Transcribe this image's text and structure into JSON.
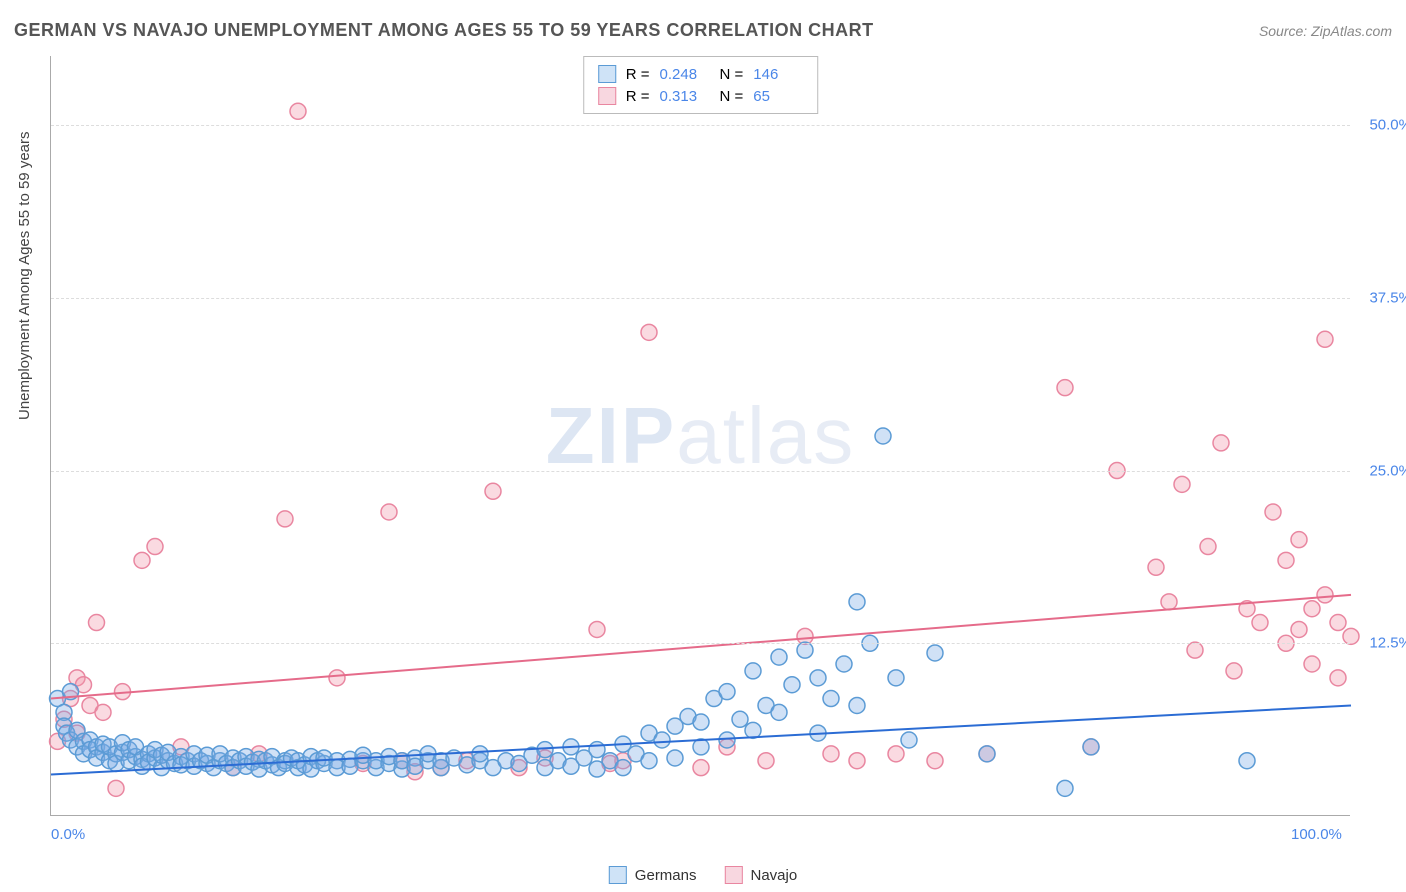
{
  "header": {
    "title": "GERMAN VS NAVAJO UNEMPLOYMENT AMONG AGES 55 TO 59 YEARS CORRELATION CHART",
    "source_prefix": "Source: ",
    "source": "ZipAtlas.com"
  },
  "chart": {
    "type": "scatter",
    "ylabel": "Unemployment Among Ages 55 to 59 years",
    "xlim": [
      0,
      100
    ],
    "ylim": [
      0,
      55
    ],
    "xticks": [
      {
        "v": 0,
        "label": "0.0%"
      },
      {
        "v": 100,
        "label": "100.0%"
      }
    ],
    "yticks": [
      {
        "v": 12.5,
        "label": "12.5%"
      },
      {
        "v": 25.0,
        "label": "25.0%"
      },
      {
        "v": 37.5,
        "label": "37.5%"
      },
      {
        "v": 50.0,
        "label": "50.0%"
      }
    ],
    "grid_color": "#dddddd",
    "axis_color": "#aaaaaa",
    "background_color": "#ffffff",
    "marker_radius": 8,
    "marker_opacity": 0.45,
    "marker_stroke_width": 1.5,
    "trend_line_width": 2,
    "series": {
      "germans": {
        "label": "Germans",
        "fill": "rgba(120,170,230,0.35)",
        "stroke": "#5b9bd5",
        "swatch_fill": "#cfe3f7",
        "swatch_border": "#5b9bd5",
        "trend_color": "#2b6cd4",
        "trend": {
          "x1": 0,
          "y1": 3.0,
          "x2": 100,
          "y2": 8.0
        },
        "R": "0.248",
        "N": "146",
        "points": [
          [
            0.5,
            8.5
          ],
          [
            1,
            7.5
          ],
          [
            1,
            6.5
          ],
          [
            1.2,
            6.0
          ],
          [
            1.5,
            5.5
          ],
          [
            1.5,
            9.0
          ],
          [
            2,
            6.2
          ],
          [
            2,
            5.0
          ],
          [
            2.5,
            5.4
          ],
          [
            2.5,
            4.5
          ],
          [
            3,
            5.5
          ],
          [
            3,
            4.8
          ],
          [
            3.5,
            5.0
          ],
          [
            3.5,
            4.2
          ],
          [
            4,
            4.6
          ],
          [
            4,
            5.2
          ],
          [
            4.5,
            4.0
          ],
          [
            4.5,
            5.0
          ],
          [
            5,
            4.5
          ],
          [
            5,
            3.8
          ],
          [
            5.5,
            4.6
          ],
          [
            5.5,
            5.3
          ],
          [
            6,
            4.0
          ],
          [
            6,
            4.8
          ],
          [
            6.5,
            4.3
          ],
          [
            6.5,
            5.0
          ],
          [
            7,
            4.1
          ],
          [
            7,
            3.6
          ],
          [
            7.5,
            4.5
          ],
          [
            7.5,
            3.9
          ],
          [
            8,
            4.2
          ],
          [
            8,
            4.8
          ],
          [
            8.5,
            3.5
          ],
          [
            8.5,
            4.4
          ],
          [
            9,
            4.0
          ],
          [
            9,
            4.6
          ],
          [
            9.5,
            3.8
          ],
          [
            10,
            4.3
          ],
          [
            10,
            3.7
          ],
          [
            10.5,
            4.0
          ],
          [
            11,
            4.5
          ],
          [
            11,
            3.6
          ],
          [
            11.5,
            4.0
          ],
          [
            12,
            3.8
          ],
          [
            12,
            4.4
          ],
          [
            12.5,
            3.5
          ],
          [
            13,
            4.0
          ],
          [
            13,
            4.5
          ],
          [
            13.5,
            3.8
          ],
          [
            14,
            4.2
          ],
          [
            14,
            3.5
          ],
          [
            14.5,
            4.0
          ],
          [
            15,
            4.3
          ],
          [
            15,
            3.6
          ],
          [
            15.5,
            3.9
          ],
          [
            16,
            4.1
          ],
          [
            16,
            3.4
          ],
          [
            16.5,
            4.0
          ],
          [
            17,
            3.7
          ],
          [
            17,
            4.3
          ],
          [
            17.5,
            3.5
          ],
          [
            18,
            4.0
          ],
          [
            18,
            3.8
          ],
          [
            18.5,
            4.2
          ],
          [
            19,
            3.5
          ],
          [
            19,
            4.0
          ],
          [
            19.5,
            3.7
          ],
          [
            20,
            4.3
          ],
          [
            20,
            3.4
          ],
          [
            20.5,
            4.0
          ],
          [
            21,
            3.8
          ],
          [
            21,
            4.2
          ],
          [
            22,
            4.0
          ],
          [
            22,
            3.5
          ],
          [
            23,
            4.1
          ],
          [
            23,
            3.6
          ],
          [
            24,
            4.0
          ],
          [
            24,
            4.4
          ],
          [
            25,
            3.5
          ],
          [
            25,
            4.0
          ],
          [
            26,
            3.8
          ],
          [
            26,
            4.3
          ],
          [
            27,
            3.4
          ],
          [
            27,
            4.0
          ],
          [
            28,
            4.2
          ],
          [
            28,
            3.6
          ],
          [
            29,
            4.0
          ],
          [
            29,
            4.5
          ],
          [
            30,
            3.5
          ],
          [
            30,
            4.0
          ],
          [
            31,
            4.2
          ],
          [
            32,
            3.7
          ],
          [
            33,
            4.0
          ],
          [
            33,
            4.5
          ],
          [
            34,
            3.5
          ],
          [
            35,
            4.0
          ],
          [
            36,
            3.8
          ],
          [
            37,
            4.4
          ],
          [
            38,
            3.5
          ],
          [
            38,
            4.8
          ],
          [
            39,
            4.0
          ],
          [
            40,
            3.6
          ],
          [
            40,
            5.0
          ],
          [
            41,
            4.2
          ],
          [
            42,
            3.4
          ],
          [
            42,
            4.8
          ],
          [
            43,
            4.0
          ],
          [
            44,
            5.2
          ],
          [
            44,
            3.5
          ],
          [
            45,
            4.5
          ],
          [
            46,
            6.0
          ],
          [
            46,
            4.0
          ],
          [
            47,
            5.5
          ],
          [
            48,
            6.5
          ],
          [
            48,
            4.2
          ],
          [
            49,
            7.2
          ],
          [
            50,
            5.0
          ],
          [
            50,
            6.8
          ],
          [
            51,
            8.5
          ],
          [
            52,
            5.5
          ],
          [
            52,
            9.0
          ],
          [
            53,
            7.0
          ],
          [
            54,
            10.5
          ],
          [
            54,
            6.2
          ],
          [
            55,
            8.0
          ],
          [
            56,
            11.5
          ],
          [
            56,
            7.5
          ],
          [
            57,
            9.5
          ],
          [
            58,
            12.0
          ],
          [
            59,
            6.0
          ],
          [
            59,
            10.0
          ],
          [
            60,
            8.5
          ],
          [
            61,
            11.0
          ],
          [
            62,
            15.5
          ],
          [
            62,
            8.0
          ],
          [
            63,
            12.5
          ],
          [
            64,
            27.5
          ],
          [
            65,
            10.0
          ],
          [
            66,
            5.5
          ],
          [
            68,
            11.8
          ],
          [
            72,
            4.5
          ],
          [
            78,
            2.0
          ],
          [
            80,
            5.0
          ],
          [
            92,
            4.0
          ]
        ]
      },
      "navajo": {
        "label": "Navajo",
        "fill": "rgba(240,150,170,0.35)",
        "stroke": "#e986a0",
        "swatch_fill": "#f8d7e0",
        "swatch_border": "#e986a0",
        "trend_color": "#e56b8a",
        "trend": {
          "x1": 0,
          "y1": 8.5,
          "x2": 100,
          "y2": 16.0
        },
        "R": "0.313",
        "N": "65",
        "points": [
          [
            0.5,
            5.4
          ],
          [
            1,
            7.0
          ],
          [
            1.5,
            8.5
          ],
          [
            2,
            6.0
          ],
          [
            2,
            10.0
          ],
          [
            2.5,
            9.5
          ],
          [
            3,
            8.0
          ],
          [
            3.5,
            14.0
          ],
          [
            4,
            7.5
          ],
          [
            5,
            2.0
          ],
          [
            5.5,
            9.0
          ],
          [
            7,
            18.5
          ],
          [
            8,
            19.5
          ],
          [
            10,
            5.0
          ],
          [
            14,
            3.5
          ],
          [
            16,
            4.5
          ],
          [
            18,
            21.5
          ],
          [
            19,
            51.0
          ],
          [
            22,
            10.0
          ],
          [
            24,
            3.8
          ],
          [
            26,
            22.0
          ],
          [
            27,
            4.0
          ],
          [
            28,
            3.2
          ],
          [
            30,
            3.5
          ],
          [
            32,
            4.0
          ],
          [
            34,
            23.5
          ],
          [
            36,
            3.5
          ],
          [
            38,
            4.2
          ],
          [
            42,
            13.5
          ],
          [
            43,
            3.8
          ],
          [
            44,
            4.0
          ],
          [
            46,
            35.0
          ],
          [
            50,
            3.5
          ],
          [
            52,
            5.0
          ],
          [
            55,
            4.0
          ],
          [
            58,
            13.0
          ],
          [
            60,
            4.5
          ],
          [
            62,
            4.0
          ],
          [
            65,
            4.5
          ],
          [
            68,
            4.0
          ],
          [
            72,
            4.5
          ],
          [
            78,
            31.0
          ],
          [
            80,
            5.0
          ],
          [
            82,
            25.0
          ],
          [
            85,
            18.0
          ],
          [
            86,
            15.5
          ],
          [
            87,
            24.0
          ],
          [
            88,
            12.0
          ],
          [
            89,
            19.5
          ],
          [
            90,
            27.0
          ],
          [
            91,
            10.5
          ],
          [
            92,
            15.0
          ],
          [
            93,
            14.0
          ],
          [
            94,
            22.0
          ],
          [
            95,
            12.5
          ],
          [
            95,
            18.5
          ],
          [
            96,
            13.5
          ],
          [
            96,
            20.0
          ],
          [
            97,
            15.0
          ],
          [
            97,
            11.0
          ],
          [
            98,
            34.5
          ],
          [
            98,
            16.0
          ],
          [
            99,
            14.0
          ],
          [
            99,
            10.0
          ],
          [
            100,
            13.0
          ]
        ]
      }
    },
    "legend_bottom": [
      {
        "key": "germans"
      },
      {
        "key": "navajo"
      }
    ],
    "stats_box_labels": {
      "R": "R =",
      "N": "N ="
    }
  },
  "watermark": {
    "zip": "ZIP",
    "atlas": "atlas"
  }
}
